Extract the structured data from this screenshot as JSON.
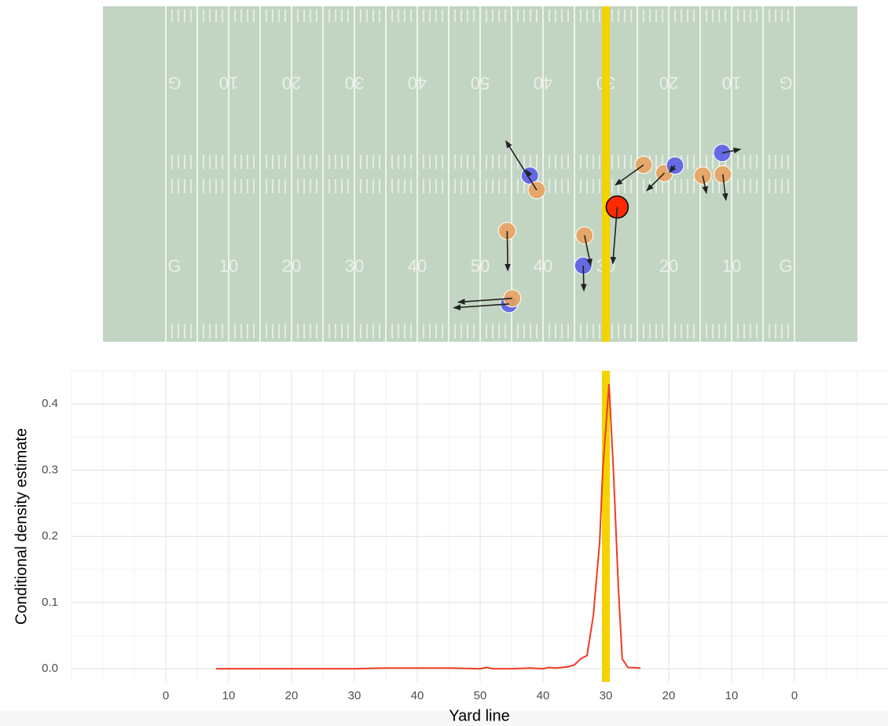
{
  "chart_data": [
    {
      "type": "field",
      "xlim": [
        -10,
        110
      ],
      "ylim": [
        0,
        53.3
      ],
      "yard_labels": [
        "G",
        "10",
        "20",
        "30",
        "40",
        "50",
        "40",
        "30",
        "20",
        "10",
        "G"
      ],
      "scrimmage": 70,
      "scrimmage_color": "#f5d300",
      "field_color": "#c2d5c2",
      "points": {
        "x": [
          57.9,
          59.0,
          54.3,
          66.6,
          66.4,
          71.8,
          76.0,
          79.3,
          81.0,
          85.4,
          88.6,
          88.5,
          54.6,
          55.1
        ],
        "y": [
          26.4,
          24.1,
          17.6,
          16.9,
          12.1,
          21.4,
          28.1,
          26.8,
          28.0,
          26.4,
          26.6,
          30.0,
          6.0,
          6.9
        ],
        "x_end": [
          57.3,
          54.1,
          54.4,
          67.6,
          66.5,
          71.1,
          71.5,
          76.5,
          80.1,
          86.0,
          89.1,
          91.4,
          45.8,
          46.5
        ],
        "y_end": [
          27.3,
          31.9,
          11.3,
          12.1,
          8.1,
          12.4,
          24.9,
          24.0,
          26.9,
          23.6,
          22.5,
          30.6,
          5.4,
          6.3
        ],
        "colors": [
          "#5b5ee8",
          "#e8a25f",
          "#e8a25f",
          "#e8a25f",
          "#5b5ee8",
          "#ff2a00",
          "#e8a25f",
          "#e8a25f",
          "#5b5ee8",
          "#e8a25f",
          "#e8a25f",
          "#5b5ee8",
          "#5b5ee8",
          "#e8a25f"
        ]
      }
    },
    {
      "type": "line",
      "xlabel": "Yard line",
      "ylabel": "Conditional density estimate",
      "color": "#f03b20",
      "x": [
        8,
        15,
        20,
        25,
        30,
        35,
        40,
        45,
        50,
        51,
        52,
        55,
        58,
        60,
        61,
        62,
        63,
        64,
        65,
        66,
        67,
        68,
        69,
        69.5,
        70.5,
        71.2,
        72,
        72.6,
        73.5,
        75.5
      ],
      "values": [
        0,
        0,
        0,
        0,
        0,
        0.001,
        0.001,
        0.001,
        0,
        0.002,
        0,
        0,
        0.001,
        0,
        0.002,
        0.001,
        0.002,
        0.003,
        0.006,
        0.015,
        0.02,
        0.08,
        0.19,
        0.3,
        0.43,
        0.3,
        0.12,
        0.015,
        0.002,
        0.001
      ],
      "xlim": [
        -15,
        115
      ],
      "ylim": [
        -0.02,
        0.45
      ],
      "xticks": [
        0,
        10,
        20,
        30,
        40,
        50,
        {
          "value": 60,
          "label": "40"
        },
        {
          "value": 70,
          "label": "30"
        },
        {
          "value": 80,
          "label": "20"
        },
        {
          "value": 90,
          "label": "10"
        },
        {
          "value": 100,
          "label": "0"
        }
      ],
      "yticks": [
        {
          "value": 0,
          "label": "0.0"
        },
        0.1,
        0.2,
        0.3,
        0.4
      ],
      "scrimmage": 70,
      "scrimmage_color": "#f5d300",
      "grid": true
    }
  ]
}
